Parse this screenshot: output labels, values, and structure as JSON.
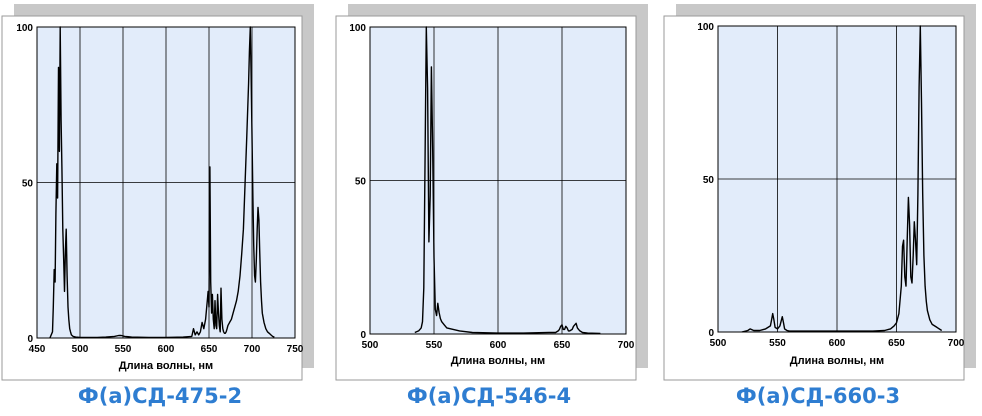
{
  "chart_data": [
    {
      "type": "line",
      "title": "Ф(а)СД-475-2",
      "xlabel": "Длина волны, нм",
      "ylabel": "",
      "xlim": [
        450,
        750
      ],
      "ylim": [
        0,
        100
      ],
      "x_ticks": [
        450,
        500,
        550,
        600,
        650,
        700,
        750
      ],
      "y_ticks": [
        0,
        50,
        100
      ],
      "grid": true,
      "color": "#000000",
      "series": [
        {
          "x": [
            465,
            468,
            469,
            470,
            471,
            472,
            473,
            474,
            475,
            476,
            477,
            478,
            479,
            480,
            481,
            482,
            483,
            484,
            485,
            486,
            487,
            488,
            489,
            490,
            492,
            495,
            500,
            510,
            520,
            530,
            540,
            545,
            548,
            552,
            560,
            580,
            600,
            620,
            630,
            632,
            634,
            636,
            638,
            640,
            642,
            644,
            646,
            648,
            649,
            650,
            651,
            652,
            653,
            654,
            655,
            656,
            657,
            658,
            659,
            660,
            661,
            662,
            663,
            664,
            665,
            666,
            667,
            668,
            669,
            670,
            671,
            672,
            674,
            676,
            678,
            680,
            682,
            684,
            686,
            688,
            690,
            692,
            694,
            696,
            697,
            698,
            699,
            700,
            701,
            702,
            703,
            704,
            705,
            706,
            707,
            708,
            709,
            710,
            711,
            712,
            714,
            716,
            718,
            720,
            722,
            724,
            726
          ],
          "y": [
            0,
            2,
            10,
            22,
            18,
            40,
            56,
            45,
            87,
            60,
            100,
            70,
            55,
            35,
            25,
            15,
            28,
            35,
            20,
            10,
            6,
            3,
            2,
            1,
            0.5,
            0.3,
            0.2,
            0.2,
            0.2,
            0.3,
            0.5,
            0.8,
            0.8,
            0.5,
            0.3,
            0.2,
            0.2,
            0.3,
            0.5,
            3,
            1,
            2,
            1,
            2,
            5,
            3,
            6,
            12,
            15,
            10,
            55,
            18,
            8,
            14,
            6,
            3,
            12,
            4,
            3,
            14,
            8,
            4,
            2,
            16,
            6,
            3,
            2,
            1.5,
            1.5,
            2,
            3,
            4,
            5,
            6,
            8,
            10,
            12,
            15,
            20,
            27,
            35,
            50,
            65,
            82,
            92,
            100,
            85,
            65,
            45,
            30,
            20,
            18,
            25,
            35,
            42,
            38,
            28,
            18,
            12,
            8,
            5,
            3,
            2,
            1.5,
            1,
            0.5,
            0.3
          ]
        }
      ]
    },
    {
      "type": "line",
      "title": "Ф(а)СД-546-4",
      "xlabel": "Длина волны, нм",
      "ylabel": "",
      "xlim": [
        500,
        700
      ],
      "ylim": [
        0,
        100
      ],
      "x_ticks": [
        500,
        550,
        600,
        650,
        700
      ],
      "y_ticks": [
        0,
        50,
        100
      ],
      "grid": true,
      "color": "#000000",
      "series": [
        {
          "x": [
            535,
            538,
            540,
            541,
            542,
            543,
            544,
            545,
            546,
            547,
            548,
            549,
            550,
            551,
            552,
            553,
            554,
            555,
            556,
            558,
            560,
            565,
            570,
            580,
            600,
            620,
            640,
            645,
            647,
            648,
            649,
            650,
            651,
            652,
            653,
            654,
            655,
            656,
            658,
            659,
            660,
            661,
            662,
            663,
            664,
            666,
            670,
            680
          ],
          "y": [
            0.5,
            1,
            2,
            4,
            15,
            55,
            100,
            80,
            30,
            45,
            87,
            60,
            25,
            8,
            6,
            10,
            7,
            5,
            4,
            3,
            2,
            1.5,
            1,
            0.5,
            0.3,
            0.3,
            0.5,
            0.5,
            1,
            1.5,
            2.5,
            3,
            1.5,
            1.5,
            2.5,
            2,
            1,
            1,
            1.5,
            2.5,
            3,
            3.5,
            2,
            1.5,
            1,
            0.5,
            0.3,
            0.2
          ]
        }
      ]
    },
    {
      "type": "line",
      "title": "Ф(а)СД-660-3",
      "xlabel": "Длина волны, нм",
      "ylabel": "",
      "xlim": [
        500,
        700
      ],
      "ylim": [
        0,
        100
      ],
      "x_ticks": [
        500,
        550,
        600,
        650,
        700
      ],
      "y_ticks": [
        0,
        50,
        100
      ],
      "grid": true,
      "color": "#000000",
      "series": [
        {
          "x": [
            520,
            525,
            527,
            530,
            535,
            540,
            542,
            544,
            545,
            546,
            547,
            548,
            550,
            552,
            553,
            554,
            555,
            556,
            558,
            560,
            570,
            600,
            630,
            640,
            645,
            648,
            650,
            652,
            654,
            655,
            656,
            657,
            658,
            659,
            660,
            661,
            662,
            663,
            664,
            665,
            666,
            667,
            668,
            669,
            670,
            671,
            672,
            673,
            674,
            675,
            676,
            678,
            680,
            684,
            688
          ],
          "y": [
            0,
            0.5,
            1,
            0.5,
            0.5,
            1,
            1.5,
            2,
            4,
            6,
            4,
            1.5,
            1,
            2,
            3.5,
            5,
            3,
            1,
            0.5,
            0.3,
            0.3,
            0.3,
            0.3,
            0.5,
            1,
            2,
            3,
            6,
            15,
            28,
            30,
            18,
            15,
            30,
            44,
            35,
            18,
            16,
            25,
            36,
            30,
            22,
            45,
            80,
            100,
            75,
            45,
            25,
            15,
            10,
            7,
            4,
            2.5,
            1.5,
            0.5
          ]
        }
      ]
    }
  ]
}
